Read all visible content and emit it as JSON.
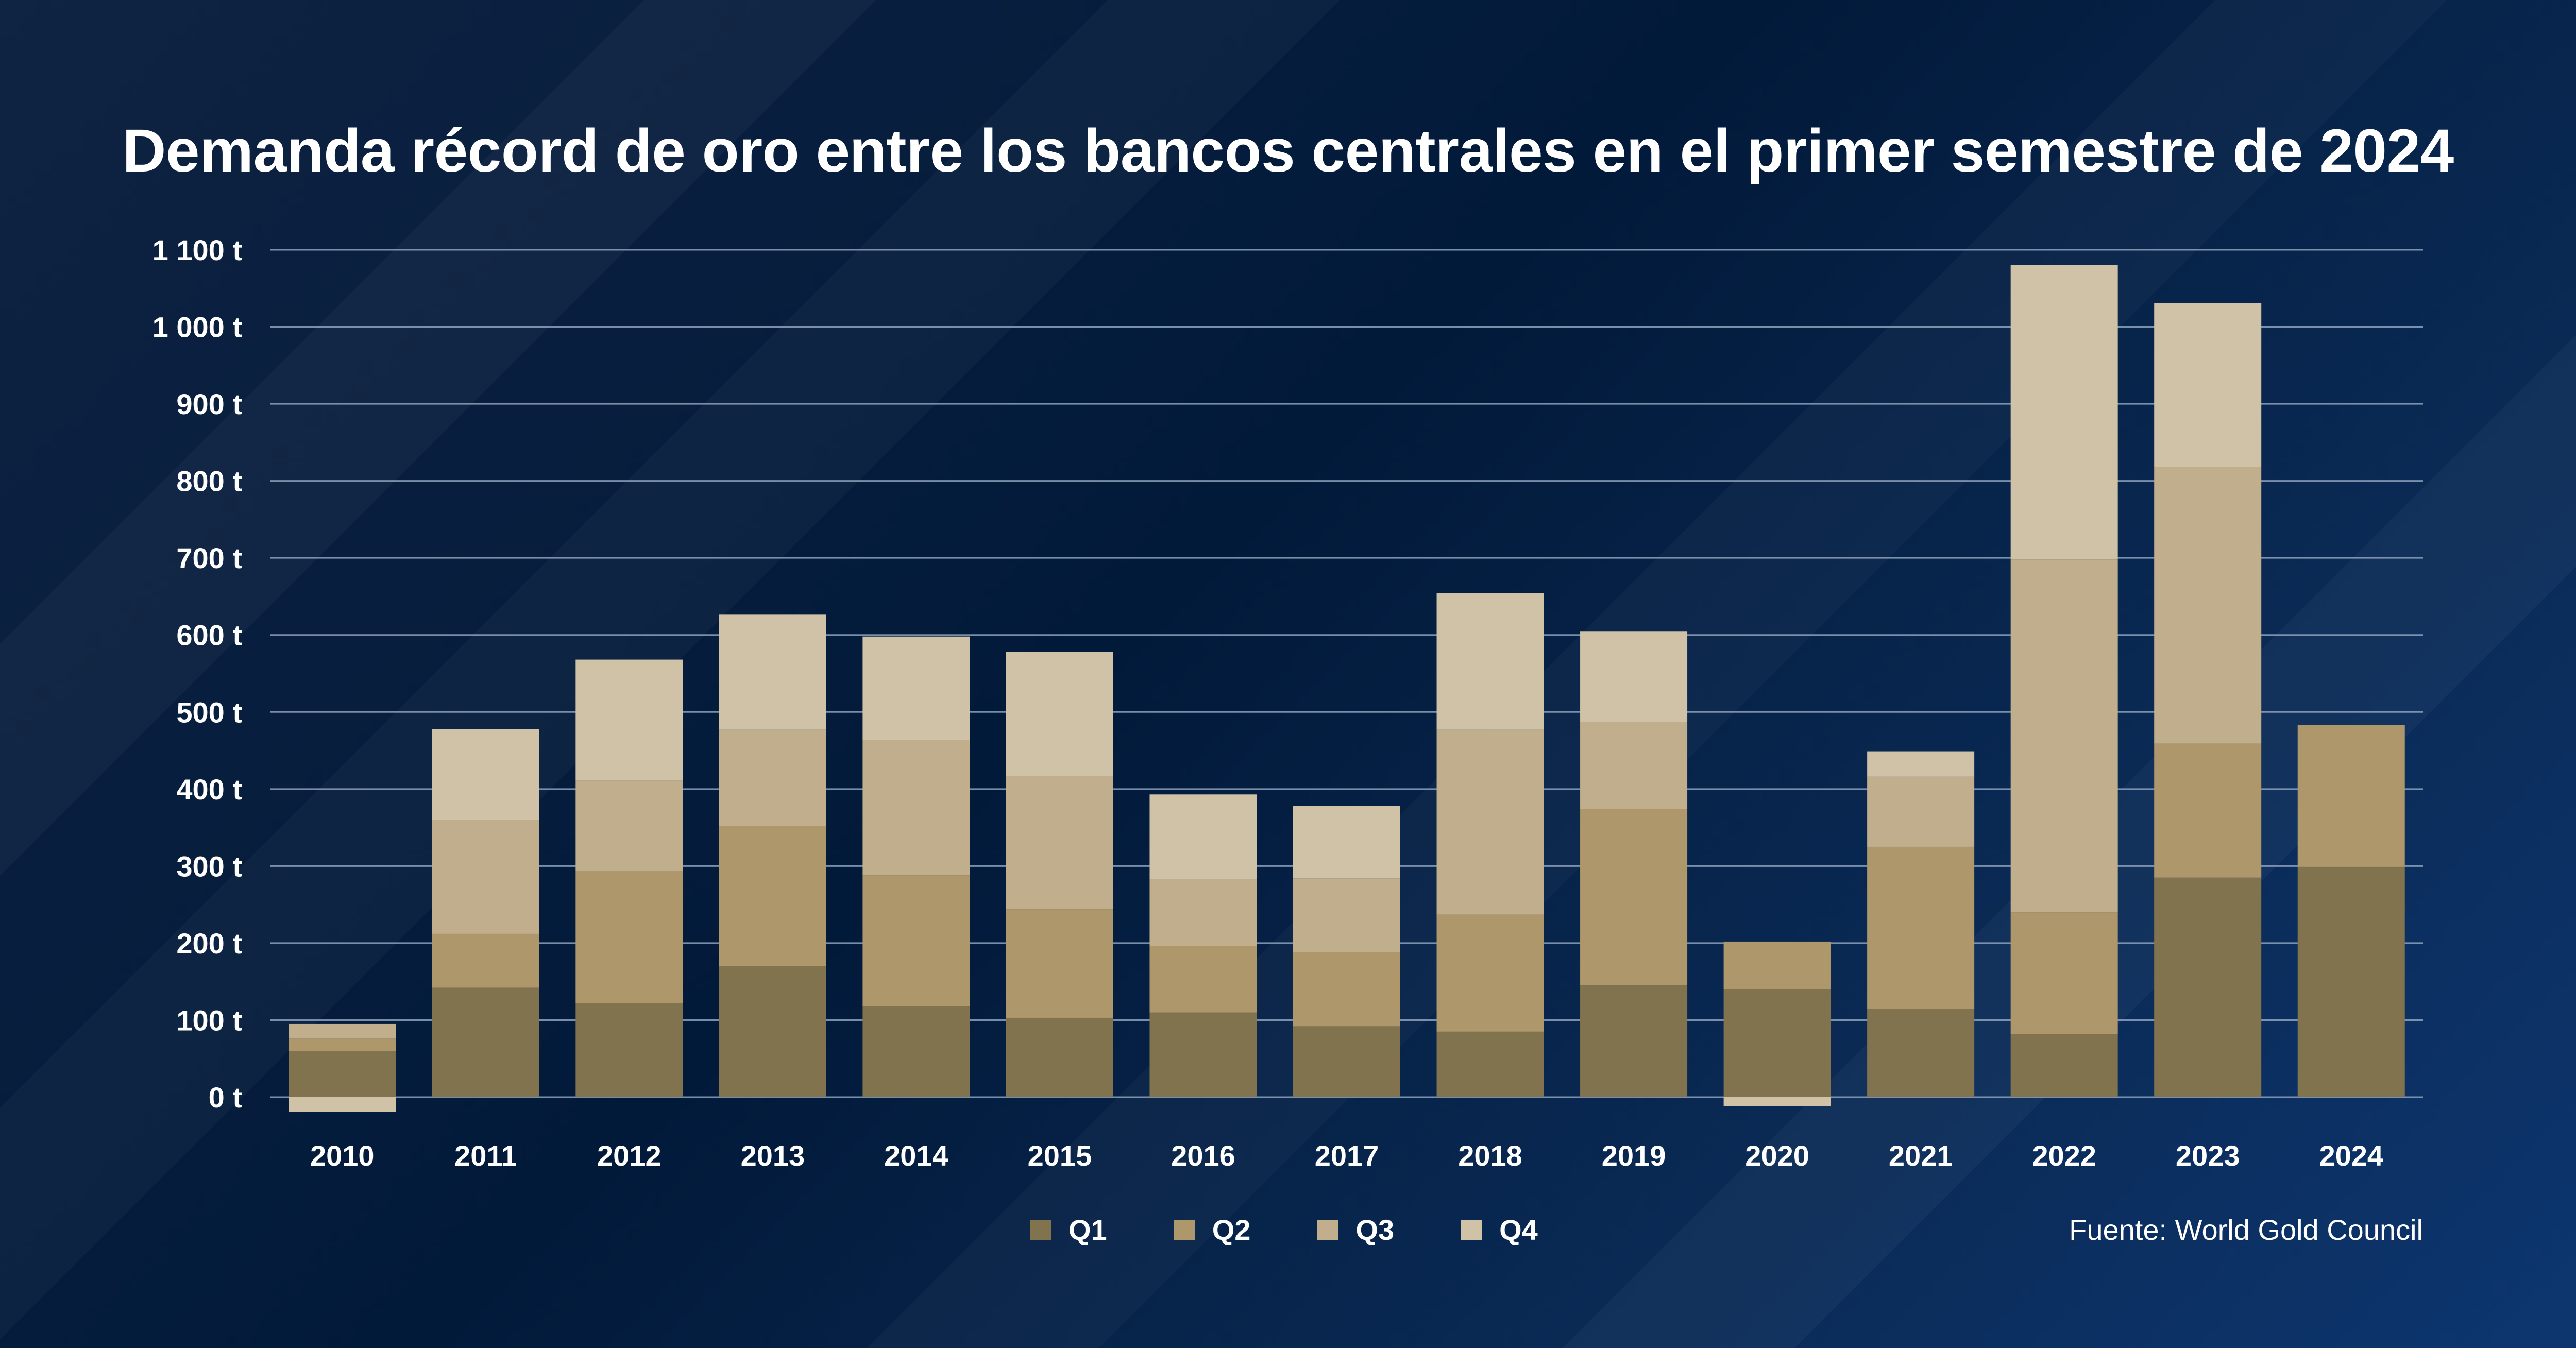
{
  "colors": {
    "q1": "#82734f",
    "q2": "#ae986b",
    "q3": "#c0ae8c",
    "q4": "#cfc2a6",
    "grid": "#8ea2bd",
    "text": "#ffffff"
  },
  "chart_data": {
    "type": "bar",
    "stacked": true,
    "title": "Demanda récord de oro entre los bancos centrales en el primer semestre de 2024",
    "source": "Fuente: World Gold Council",
    "xlabel": "",
    "ylabel": "",
    "ylim": [
      0,
      1100
    ],
    "y_ticks": [
      0,
      100,
      200,
      300,
      400,
      500,
      600,
      700,
      800,
      900,
      1000,
      1100
    ],
    "y_tick_labels": [
      "0 t",
      "100 t",
      "200 t",
      "300 t",
      "400 t",
      "500 t",
      "600 t",
      "700 t",
      "800 t",
      "900 t",
      "1 000 t",
      "1 100 t"
    ],
    "grid": true,
    "legend_position": "bottom",
    "categories": [
      "2010",
      "2011",
      "2012",
      "2013",
      "2014",
      "2015",
      "2016",
      "2017",
      "2018",
      "2019",
      "2020",
      "2021",
      "2022",
      "2023",
      "2024"
    ],
    "series": [
      {
        "name": "Q1",
        "color_key": "q1",
        "values": [
          60,
          142,
          122,
          170,
          118,
          103,
          110,
          92,
          85,
          145,
          140,
          115,
          82,
          285,
          299
        ]
      },
      {
        "name": "Q2",
        "color_key": "q2",
        "values": [
          16,
          70,
          172,
          182,
          170,
          141,
          86,
          96,
          152,
          229,
          62,
          210,
          158,
          174,
          184
        ]
      },
      {
        "name": "Q3",
        "color_key": "q3",
        "values": [
          19,
          148,
          117,
          125,
          176,
          173,
          87,
          96,
          240,
          113,
          0,
          91,
          458,
          359,
          0
        ]
      },
      {
        "name": "Q4",
        "color_key": "q4",
        "values": [
          -19,
          118,
          157,
          150,
          134,
          161,
          110,
          94,
          177,
          118,
          -12,
          33,
          382,
          213,
          0
        ]
      }
    ]
  }
}
